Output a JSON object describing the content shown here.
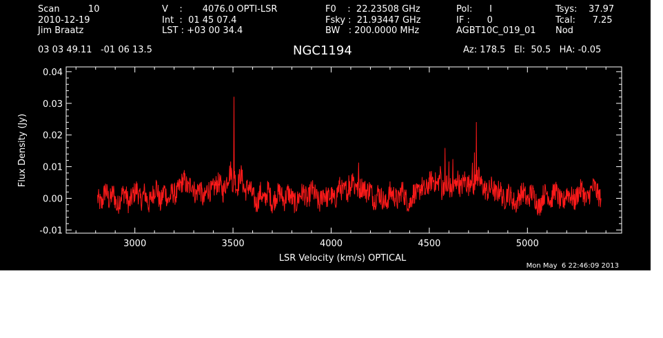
{
  "header": {
    "col1": [
      "Scan          10",
      "2010-12-19",
      "Jim Braatz"
    ],
    "col2": [
      "V    :       4076.0 OPTI-LSR",
      "Int  :  01 45 07.4",
      "LST : +03 00 34.4"
    ],
    "col3": [
      "F0    :  22.23508 GHz",
      "Fsky :  21.93447 GHz",
      "BW   : 200.0000 MHz"
    ],
    "col4": [
      "Pol:      I",
      "IF :      0",
      "AGBT10C_019_01"
    ],
    "col5": [
      "Tsys:    37.97",
      "Tcal:      7.25",
      "Nod"
    ],
    "coords": "03 03 49.11   -01 06 13.5",
    "target": "NGC1194",
    "az_el_ha": "Az: 178.5   El:  50.5   HA: -0.05"
  },
  "timestamp": "Mon May  6 22:46:09 2013",
  "colors": {
    "background": "#000000",
    "foreground": "#ffffff",
    "trace": "#ff1a1a"
  },
  "chart_data": {
    "type": "line",
    "xlabel": "LSR Velocity (km/s) OPTICAL",
    "ylabel": "Flux Density (Jy)",
    "xlim": [
      2650,
      5480
    ],
    "ylim": [
      -0.011,
      0.0415
    ],
    "x_ticks": [
      3000,
      3500,
      4000,
      4500,
      5000
    ],
    "x_tick_labels": [
      "3000",
      "3500",
      "4000",
      "4500",
      "5000"
    ],
    "y_ticks": [
      -0.01,
      0.0,
      0.01,
      0.02,
      0.03,
      0.04
    ],
    "y_tick_labels": [
      "-0.01",
      "0.00",
      "0.01",
      "0.02",
      "0.03",
      "0.04"
    ],
    "series": [
      {
        "x": [
          2810,
          2830,
          2850,
          2870,
          2890,
          2910,
          2930,
          2950,
          2970,
          2990,
          3010,
          3030,
          3050,
          3070,
          3090,
          3110,
          3130,
          3150,
          3170,
          3190,
          3210,
          3230,
          3250,
          3270,
          3290,
          3310,
          3330,
          3350,
          3370,
          3390,
          3410,
          3430,
          3450,
          3470,
          3490,
          3500,
          3505,
          3510,
          3520,
          3540,
          3560,
          3580,
          3600,
          3620,
          3640,
          3660,
          3680,
          3700,
          3720,
          3740,
          3760,
          3780,
          3800,
          3820,
          3840,
          3860,
          3880,
          3900,
          3920,
          3940,
          3960,
          3980,
          4000,
          4020,
          4040,
          4060,
          4080,
          4090,
          4100,
          4110,
          4120,
          4130,
          4140,
          4160,
          4180,
          4200,
          4220,
          4240,
          4260,
          4280,
          4300,
          4320,
          4340,
          4360,
          4380,
          4400,
          4420,
          4440,
          4460,
          4480,
          4500,
          4520,
          4540,
          4560,
          4580,
          4590,
          4600,
          4610,
          4620,
          4640,
          4660,
          4680,
          4700,
          4720,
          4730,
          4740,
          4745,
          4750,
          4760,
          4780,
          4800,
          4820,
          4840,
          4860,
          4880,
          4900,
          4920,
          4940,
          4960,
          4980,
          5000,
          5020,
          5040,
          5060,
          5080,
          5100,
          5120,
          5140,
          5160,
          5180,
          5200,
          5220,
          5240,
          5260,
          5280,
          5300,
          5320,
          5340,
          5360,
          5375
        ],
        "y": [
          0.0,
          -0.002,
          0.003,
          -0.001,
          0.002,
          -0.003,
          0.001,
          0.002,
          -0.002,
          0.001,
          0.003,
          -0.001,
          0.002,
          -0.002,
          0.001,
          0.004,
          -0.002,
          0.003,
          -0.001,
          0.002,
          0.001,
          0.004,
          0.006,
          0.003,
          0.005,
          0.001,
          0.004,
          -0.001,
          0.003,
          0.002,
          0.004,
          0.005,
          0.002,
          0.006,
          0.009,
          0.004,
          0.031,
          0.006,
          0.003,
          0.008,
          0.002,
          0.004,
          0.001,
          -0.002,
          0.002,
          -0.001,
          0.003,
          -0.002,
          0.001,
          0.002,
          -0.001,
          0.002,
          0.0,
          -0.002,
          0.001,
          0.002,
          -0.001,
          0.003,
          0.001,
          -0.002,
          0.002,
          0.0,
          0.001,
          -0.001,
          0.004,
          0.002,
          0.003,
          0.01,
          0.004,
          0.008,
          0.003,
          0.006,
          0.011,
          0.004,
          0.002,
          0.003,
          -0.001,
          0.002,
          0.0,
          -0.002,
          0.002,
          0.001,
          -0.001,
          0.003,
          0.0,
          -0.002,
          0.002,
          0.001,
          0.004,
          0.002,
          0.005,
          0.006,
          0.004,
          0.008,
          0.013,
          0.006,
          0.011,
          0.004,
          0.012,
          0.007,
          0.003,
          0.006,
          0.004,
          0.008,
          0.012,
          0.026,
          0.01,
          0.007,
          0.005,
          0.003,
          0.002,
          0.004,
          0.001,
          0.003,
          -0.001,
          0.002,
          0.0,
          -0.002,
          0.001,
          0.002,
          -0.001,
          0.002,
          0.0,
          -0.003,
          0.001,
          0.002,
          -0.001,
          0.003,
          0.0,
          -0.002,
          0.002,
          0.001,
          -0.001,
          0.002,
          0.003,
          -0.001,
          0.002,
          0.004,
          0.001,
          0.0
        ]
      }
    ]
  }
}
